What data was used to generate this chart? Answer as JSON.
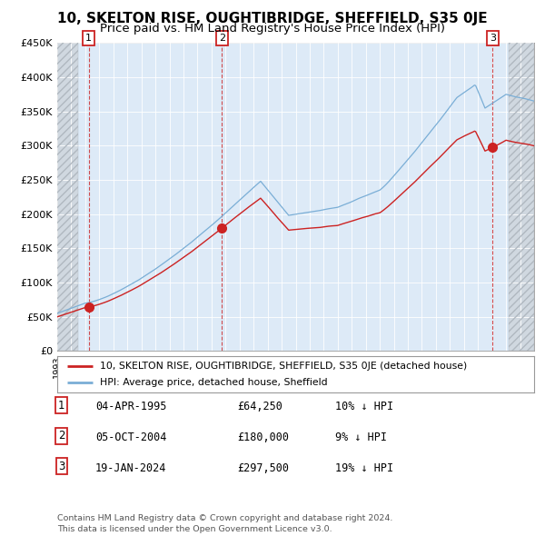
{
  "title": "10, SKELTON RISE, OUGHTIBRIDGE, SHEFFIELD, S35 0JE",
  "subtitle": "Price paid vs. HM Land Registry's House Price Index (HPI)",
  "ylim": [
    0,
    450000
  ],
  "xlim_start": 1993,
  "xlim_end": 2027,
  "yticks": [
    0,
    50000,
    100000,
    150000,
    200000,
    250000,
    300000,
    350000,
    400000,
    450000
  ],
  "ytick_labels": [
    "£0",
    "£50K",
    "£100K",
    "£150K",
    "£200K",
    "£250K",
    "£300K",
    "£350K",
    "£400K",
    "£450K"
  ],
  "sale_dates": [
    1995.25,
    2004.75,
    2024.05
  ],
  "sale_prices": [
    64250,
    180000,
    297500
  ],
  "sale_labels": [
    "1",
    "2",
    "3"
  ],
  "hpi_color": "#7aaed6",
  "sale_color": "#cc2222",
  "plot_bg_color": "#ddeaf7",
  "hatch_color": "#c8c8c8",
  "legend_line1": "10, SKELTON RISE, OUGHTIBRIDGE, SHEFFIELD, S35 0JE (detached house)",
  "legend_line2": "HPI: Average price, detached house, Sheffield",
  "table_rows": [
    {
      "num": "1",
      "date": "04-APR-1995",
      "price": "£64,250",
      "hpi": "10% ↓ HPI"
    },
    {
      "num": "2",
      "date": "05-OCT-2004",
      "price": "£180,000",
      "hpi": "9% ↓ HPI"
    },
    {
      "num": "3",
      "date": "19-JAN-2024",
      "price": "£297,500",
      "hpi": "19% ↓ HPI"
    }
  ],
  "footer": "Contains HM Land Registry data © Crown copyright and database right 2024.\nThis data is licensed under the Open Government Licence v3.0.",
  "title_fontsize": 11,
  "subtitle_fontsize": 9.5,
  "hatch_left_end": 1994.5,
  "hatch_right_start": 2025.2
}
